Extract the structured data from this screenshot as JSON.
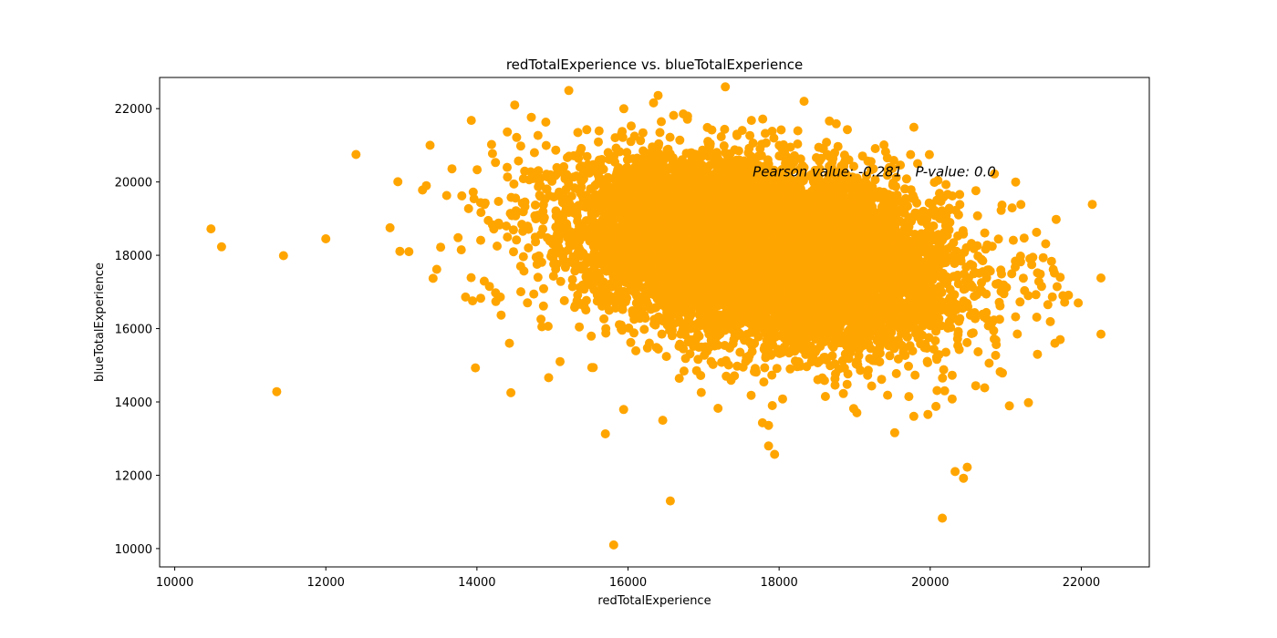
{
  "chart_data": {
    "type": "scatter",
    "title": "redTotalExperience vs. blueTotalExperience",
    "xlabel": "redTotalExperience",
    "ylabel": "blueTotalExperience",
    "xlim": [
      9800,
      22900
    ],
    "ylim": [
      9500,
      22850
    ],
    "xticks": [
      10000,
      12000,
      14000,
      16000,
      18000,
      20000,
      22000
    ],
    "yticks": [
      10000,
      12000,
      14000,
      16000,
      18000,
      20000,
      22000
    ],
    "grid": false,
    "marker_color": "#FFA500",
    "annotation": {
      "text": "Pearson value: -0.281   P-value: 0.0",
      "x": 17650,
      "y": 20150
    },
    "cluster": {
      "center": [
        17800,
        18100
      ],
      "std": [
        1200,
        1200
      ],
      "pearson": -0.281,
      "count": 9800
    },
    "outliers": [
      [
        10480,
        18720
      ],
      [
        10620,
        18230
      ],
      [
        11350,
        14280
      ],
      [
        11440,
        17990
      ],
      [
        12000,
        18450
      ],
      [
        12400,
        20750
      ],
      [
        12850,
        18750
      ],
      [
        12980,
        18110
      ],
      [
        13100,
        18100
      ],
      [
        13280,
        19780
      ],
      [
        13330,
        19900
      ],
      [
        13380,
        21000
      ],
      [
        13420,
        17370
      ],
      [
        13520,
        18220
      ],
      [
        13600,
        19630
      ],
      [
        13670,
        20360
      ],
      [
        13750,
        18480
      ],
      [
        13800,
        19620
      ],
      [
        13850,
        16860
      ],
      [
        13980,
        14930
      ],
      [
        14050,
        16830
      ],
      [
        14150,
        18950
      ],
      [
        14250,
        16740
      ],
      [
        14320,
        16370
      ],
      [
        14400,
        20400
      ],
      [
        14430,
        15600
      ],
      [
        14450,
        14250
      ],
      [
        14500,
        22100
      ],
      [
        14580,
        20980
      ],
      [
        14860,
        16050
      ],
      [
        14950,
        14660
      ],
      [
        15100,
        15100
      ],
      [
        15540,
        14940
      ],
      [
        15700,
        13130
      ],
      [
        15810,
        10100
      ],
      [
        16460,
        13500
      ],
      [
        16560,
        11300
      ],
      [
        17630,
        14180
      ],
      [
        17780,
        13430
      ],
      [
        17860,
        12800
      ],
      [
        17860,
        13360
      ],
      [
        17910,
        13900
      ],
      [
        17940,
        12570
      ],
      [
        18330,
        22200
      ],
      [
        19530,
        13160
      ],
      [
        19970,
        13660
      ],
      [
        20160,
        10830
      ],
      [
        20330,
        12100
      ],
      [
        20440,
        11920
      ],
      [
        20490,
        12220
      ],
      [
        20850,
        20220
      ],
      [
        20950,
        19370
      ],
      [
        21300,
        13980
      ],
      [
        21420,
        15300
      ],
      [
        21590,
        16190
      ],
      [
        21650,
        15600
      ],
      [
        21720,
        15700
      ],
      [
        21780,
        16720
      ],
      [
        21830,
        16910
      ],
      [
        21960,
        16700
      ],
      [
        22260,
        17380
      ],
      [
        22260,
        15850
      ],
      [
        21420,
        17520
      ],
      [
        21100,
        18410
      ],
      [
        15520,
        14940
      ]
    ]
  }
}
